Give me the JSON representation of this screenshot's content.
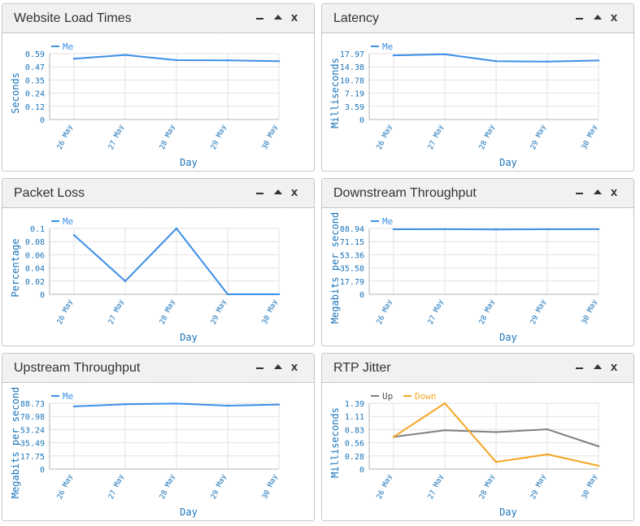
{
  "panels": [
    {
      "id": "website-load-times",
      "title": "Website Load Times",
      "chart_data": {
        "type": "line",
        "categories": [
          "26 May",
          "27 May",
          "28 May",
          "29 May",
          "30 May"
        ],
        "xlabel": "Day",
        "ylabel": "Seconds",
        "yticks": [
          "0",
          "0.12",
          "0.24",
          "0.35",
          "0.47",
          "0.59"
        ],
        "ylim": [
          0,
          0.59
        ],
        "legend_position": "top-left",
        "series": [
          {
            "name": "Me",
            "color": "#3d8fe8",
            "values": [
              0.545,
              0.578,
              0.532,
              0.53,
              0.522
            ]
          }
        ]
      }
    },
    {
      "id": "latency",
      "title": "Latency",
      "chart_data": {
        "type": "line",
        "categories": [
          "26 May",
          "27 May",
          "28 May",
          "29 May",
          "30 May"
        ],
        "xlabel": "Day",
        "ylabel": "Milliseconds",
        "yticks": [
          "0",
          "3.59",
          "7.19",
          "10.78",
          "14.38",
          "17.97"
        ],
        "ylim": [
          0,
          17.97
        ],
        "legend_position": "top-left",
        "series": [
          {
            "name": "Me",
            "color": "#3d8fe8",
            "values": [
              17.5,
              17.8,
              15.9,
              15.8,
              16.1
            ]
          }
        ]
      }
    },
    {
      "id": "packet-loss",
      "title": "Packet Loss",
      "chart_data": {
        "type": "line",
        "categories": [
          "26 May",
          "27 May",
          "28 May",
          "29 May",
          "30 May"
        ],
        "xlabel": "Day",
        "ylabel": "Percentage",
        "yticks": [
          "0",
          "0.02",
          "0.04",
          "0.06",
          "0.08",
          "0.1"
        ],
        "ylim": [
          0,
          0.1
        ],
        "legend_position": "top-left",
        "series": [
          {
            "name": "Me",
            "color": "#3d8fe8",
            "values": [
              0.09,
              0.02,
              0.1,
              0,
              0
            ]
          }
        ]
      }
    },
    {
      "id": "downstream-throughput",
      "title": "Downstream Throughput",
      "chart_data": {
        "type": "line",
        "categories": [
          "26 May",
          "27 May",
          "28 May",
          "29 May",
          "30 May"
        ],
        "xlabel": "Day",
        "ylabel": "Megabits per second",
        "yticks": [
          "0",
          "17.79",
          "35.58",
          "53.36",
          "71.15",
          "88.94"
        ],
        "ylim": [
          0,
          88.94
        ],
        "legend_position": "top-left",
        "series": [
          {
            "name": "Me",
            "color": "#3d8fe8",
            "values": [
              87.8,
              88.0,
              87.5,
              87.8,
              88.0
            ]
          }
        ]
      }
    },
    {
      "id": "upstream-throughput",
      "title": "Upstream Throughput",
      "chart_data": {
        "type": "line",
        "categories": [
          "26 May",
          "27 May",
          "28 May",
          "29 May",
          "30 May"
        ],
        "xlabel": "Day",
        "ylabel": "Megabits per second",
        "yticks": [
          "0",
          "17.75",
          "35.49",
          "53.24",
          "70.98",
          "88.73"
        ],
        "ylim": [
          0,
          88.73
        ],
        "legend_position": "top-left",
        "series": [
          {
            "name": "Me",
            "color": "#3d8fe8",
            "values": [
              84.5,
              87.3,
              88.3,
              85.4,
              87.0
            ]
          }
        ]
      }
    },
    {
      "id": "rtp-jitter",
      "title": "RTP Jitter",
      "chart_data": {
        "type": "line",
        "categories": [
          "26 May",
          "27 May",
          "28 May",
          "29 May",
          "30 May"
        ],
        "xlabel": "Day",
        "ylabel": "Milliseconds",
        "yticks": [
          "0",
          "0.28",
          "0.56",
          "0.83",
          "1.11",
          "1.39"
        ],
        "ylim": [
          0,
          1.39
        ],
        "legend_position": "top-left",
        "series": [
          {
            "name": "Up",
            "color": "#808080",
            "values": [
              0.68,
              0.82,
              0.78,
              0.84,
              0.48
            ]
          },
          {
            "name": "Down",
            "color": "#f5a623",
            "values": [
              0.68,
              1.39,
              0.15,
              0.31,
              0.07
            ]
          }
        ]
      }
    }
  ],
  "controls": {
    "minimize_icon": "minimize-icon",
    "collapse_icon": "collapse-up-icon",
    "close_icon": "close-icon"
  },
  "colors": {
    "axis_text": "#1a73b8",
    "grid": "#e1e1e1",
    "axis": "#b5b5b5"
  }
}
